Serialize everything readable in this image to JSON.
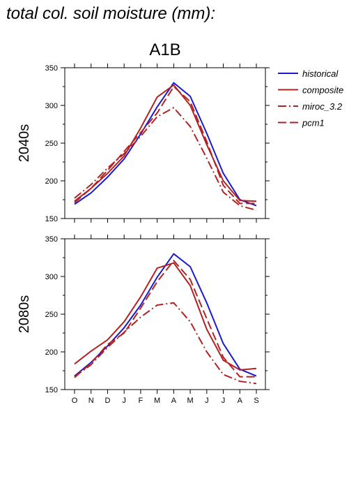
{
  "figure_title": "total col. soil moisture (mm):",
  "scenario": "A1B",
  "legend": [
    {
      "name": "historical",
      "color": "#1a1acc",
      "dash": "solid"
    },
    {
      "name": "composite",
      "color": "#b22222",
      "dash": "solid"
    },
    {
      "name": "miroc_3.2",
      "color": "#b22222",
      "dash": "dashdot"
    },
    {
      "name": "pcm1",
      "color": "#b22222",
      "dash": "dashed"
    }
  ],
  "chart_data": [
    {
      "type": "line",
      "row_label": "2040s",
      "categories": [
        "O",
        "N",
        "D",
        "J",
        "F",
        "M",
        "A",
        "M",
        "J",
        "J",
        "A",
        "S"
      ],
      "ylim": [
        150,
        350
      ],
      "yticks": [
        150,
        200,
        250,
        300,
        350
      ],
      "series": [
        {
          "name": "historical",
          "values": [
            169,
            184,
            205,
            229,
            262,
            298,
            330,
            312,
            263,
            210,
            175,
            167
          ]
        },
        {
          "name": "composite",
          "values": [
            173,
            190,
            210,
            233,
            270,
            311,
            327,
            300,
            248,
            200,
            174,
            173
          ]
        },
        {
          "name": "miroc_3.2",
          "values": [
            177,
            195,
            217,
            236,
            259,
            285,
            297,
            272,
            230,
            185,
            167,
            161
          ]
        },
        {
          "name": "pcm1",
          "values": [
            171,
            190,
            214,
            239,
            264,
            290,
            325,
            305,
            252,
            194,
            170,
            170
          ]
        }
      ]
    },
    {
      "type": "line",
      "row_label": "2080s",
      "categories": [
        "O",
        "N",
        "D",
        "J",
        "F",
        "M",
        "A",
        "M",
        "J",
        "J",
        "A",
        "S"
      ],
      "ylim": [
        150,
        350
      ],
      "yticks": [
        150,
        200,
        250,
        300,
        350
      ],
      "series": [
        {
          "name": "historical",
          "values": [
            168,
            186,
            208,
            232,
            262,
            299,
            330,
            313,
            265,
            211,
            177,
            168
          ]
        },
        {
          "name": "composite",
          "values": [
            184,
            201,
            216,
            240,
            273,
            311,
            318,
            288,
            230,
            189,
            176,
            178
          ]
        },
        {
          "name": "miroc_3.2",
          "values": [
            167,
            183,
            206,
            226,
            246,
            262,
            265,
            240,
            200,
            170,
            161,
            158
          ]
        },
        {
          "name": "pcm1",
          "values": [
            166,
            185,
            210,
            225,
            258,
            293,
            321,
            296,
            244,
            193,
            167,
            167
          ]
        }
      ]
    }
  ]
}
